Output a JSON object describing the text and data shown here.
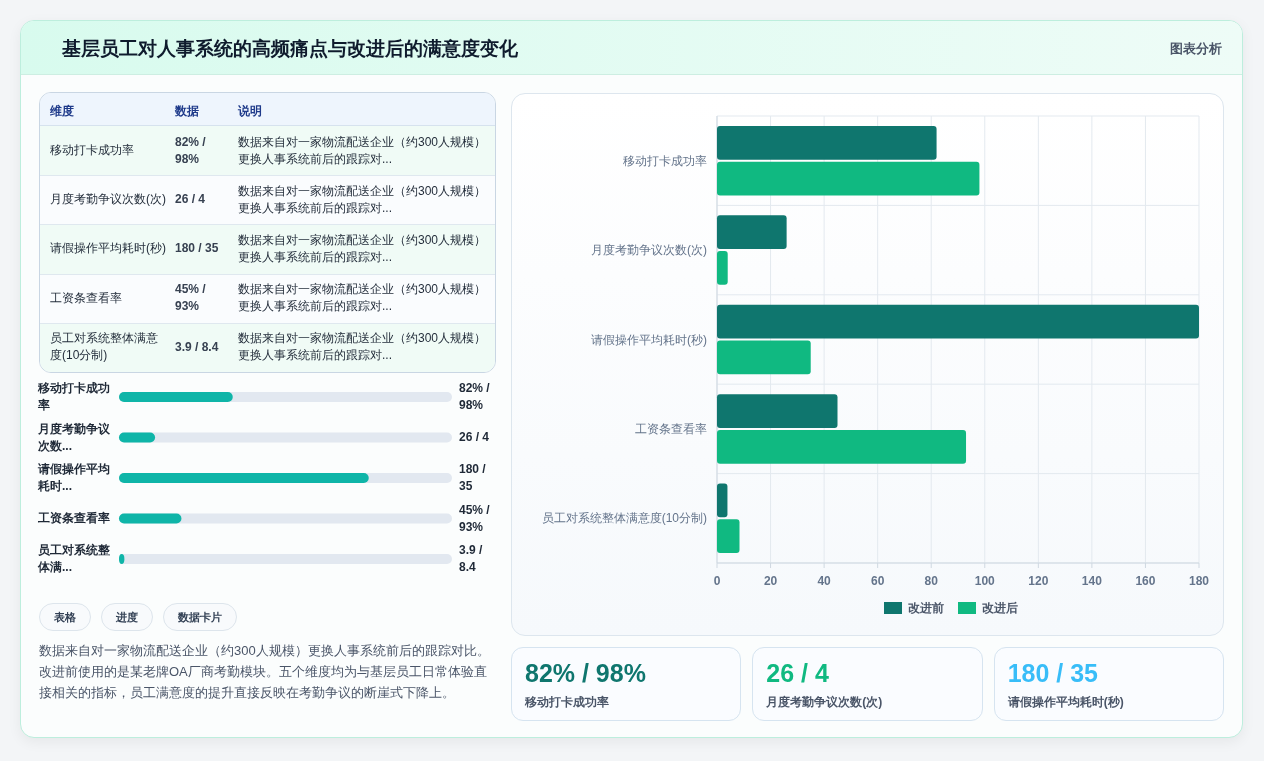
{
  "chart_data": [
    {
      "type": "other",
      "title": "基层员工对人事系统的高频痛点与改进后的满意度变化",
      "annotations": [
        "图表分析"
      ]
    },
    {
      "type": "other",
      "annotations": [
        "维度",
        "数据",
        "说明",
        "移动打卡成功率",
        "82% / 98%",
        "数据来自对一家物流配送企业（约300人规模）更换人事系统前后的跟踪对...",
        "月度考勤争议次数(次)",
        "26 / 4",
        "数据来自对一家物流配送企业（约300人规模）更换人事系统前后的跟踪对...",
        "请假操作平均耗时(秒)",
        "180 / 35",
        "数据来自对一家物流配送企业（约300人规模）更换人事系统前后的跟踪对...",
        "工资条查看率",
        "45% / 93%",
        "数据来自对一家物流配送企业（约300人规模）更换人事系统前后的跟踪对...",
        "员工对系统整体满意度(10分制)",
        "3.9 / 8.4",
        "数据来自对一家物流配送企业（约300人规模）更换人事系统前后的跟踪对..."
      ]
    },
    {
      "type": "bar",
      "orientation": "horizontal",
      "xlim": [
        0,
        240
      ],
      "color": "#0fb5a8",
      "categories": [
        "移动打卡成功率",
        "月度考勤争议次数...",
        "请假操作平均耗时...",
        "工资条查看率",
        "员工对系统整体满..."
      ],
      "values": [
        82,
        26,
        180,
        45,
        3.9
      ],
      "value_labels": [
        "82% / 98%",
        "26 / 4",
        "180 / 35",
        "45% / 93%",
        "3.9 / 8.4"
      ]
    },
    {
      "type": "bar",
      "orientation": "horizontal",
      "xlim": [
        0,
        180
      ],
      "xticks": [
        0,
        20,
        40,
        60,
        80,
        100,
        120,
        140,
        160,
        180
      ],
      "grid": true,
      "legend": "bottom",
      "categories": [
        "移动打卡成功率",
        "月度考勤争议次数(次)",
        "请假操作平均耗时(秒)",
        "工资条查看率",
        "员工对系统整体满意度(10分制)"
      ],
      "series": [
        {
          "name": "改进前",
          "color": "#0f766e",
          "values": [
            82,
            26,
            180,
            45,
            3.9
          ]
        },
        {
          "name": "改进后",
          "color": "#10b981",
          "values": [
            98,
            4,
            35,
            93,
            8.4
          ]
        }
      ]
    },
    {
      "type": "other",
      "annotations": [
        "表格",
        "进度",
        "数据卡片",
        "数据来自对一家物流配送企业（约300人规模）更换人事系统前后的跟踪对比。改进前使用的是某老牌OA厂商考勤模块。五个维度均为与基层员工日常体验直接相关的指标，员工满意度的提升直接反映在考勤争议的断崖式下降上。"
      ]
    },
    {
      "type": "other",
      "colors": [
        "#0f766e",
        "#10b981",
        "#38bdf8"
      ],
      "annotations": [
        "82% / 98%",
        "移动打卡成功率",
        "26 / 4",
        "月度考勤争议次数(次)",
        "180 / 35",
        "请假操作平均耗时(秒)"
      ]
    }
  ]
}
